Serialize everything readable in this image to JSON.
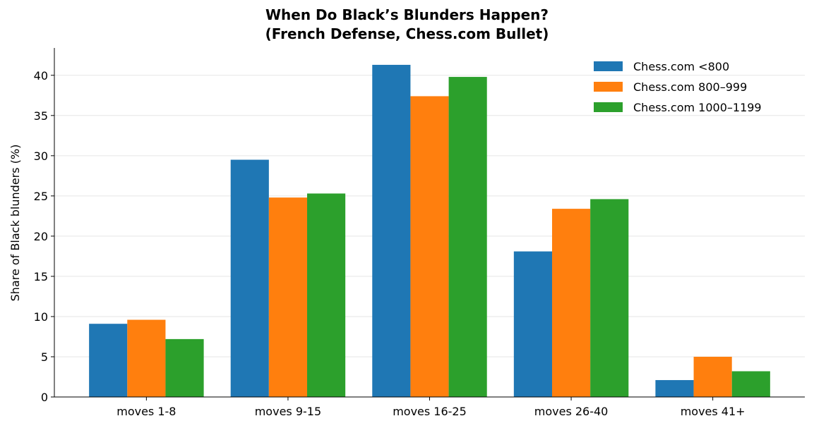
{
  "chart_data": {
    "type": "bar",
    "title": "When Do Black’s Blunders Happen?\n(French Defense, Chess.com Bullet)",
    "y_label": "Share of Black blunders (%)",
    "categories": [
      "moves 1-8",
      "moves 9-15",
      "moves 16-25",
      "moves 26-40",
      "moves 41+"
    ],
    "series": [
      {
        "name": "Chess.com <800",
        "color": "#1f77b4",
        "values": [
          9.1,
          29.5,
          41.3,
          18.1,
          2.1
        ]
      },
      {
        "name": "Chess.com 800–999",
        "color": "#ff7f0e",
        "values": [
          9.6,
          24.8,
          37.4,
          23.4,
          5.0
        ]
      },
      {
        "name": "Chess.com 1000–1199",
        "color": "#2ca02c",
        "values": [
          7.2,
          25.3,
          39.8,
          24.6,
          3.2
        ]
      }
    ],
    "ylim": [
      0,
      43.4
    ],
    "yticks": [
      0,
      5,
      10,
      15,
      20,
      25,
      30,
      35,
      40
    ],
    "grid": true,
    "legend": "upper right"
  }
}
